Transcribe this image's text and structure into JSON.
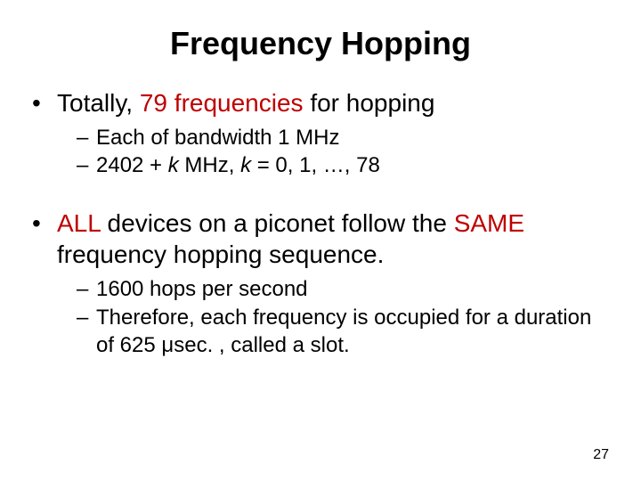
{
  "title": "Frequency Hopping",
  "bullets": {
    "b1": {
      "pre": "Totally, ",
      "hl": "79 frequencies",
      "post": " for hopping",
      "sub1": "Each of bandwidth 1 MHz",
      "sub2_a": "2402 + ",
      "sub2_k1": "k",
      "sub2_b": " MHz, ",
      "sub2_k2": "k",
      "sub2_c": " = 0, 1, …, 78"
    },
    "b2": {
      "t1": "ALL",
      "t2": " devices on a piconet follow the ",
      "t3": "SAME",
      "t4": " frequency hopping sequence.",
      "sub1": "1600 hops per second",
      "sub2_a": "Therefore, each frequency is occupied for a duration of 625 ",
      "sub2_mu": "μ",
      "sub2_b": "sec. , called a slot."
    }
  },
  "colors": {
    "highlight": "#bf0000",
    "text": "#000000",
    "bg": "#ffffff"
  },
  "pagenum": "27"
}
